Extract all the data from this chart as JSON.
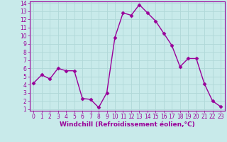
{
  "x": [
    0,
    1,
    2,
    3,
    4,
    5,
    6,
    7,
    8,
    9,
    10,
    11,
    12,
    13,
    14,
    15,
    16,
    17,
    18,
    19,
    20,
    21,
    22,
    23
  ],
  "y": [
    4.2,
    5.2,
    4.7,
    6.0,
    5.7,
    5.7,
    2.3,
    2.2,
    1.2,
    3.0,
    9.8,
    12.8,
    12.5,
    13.8,
    12.8,
    11.8,
    10.3,
    8.8,
    6.2,
    7.2,
    7.2,
    4.1,
    2.0,
    1.3
  ],
  "line_color": "#990099",
  "marker": "D",
  "marker_size": 2.5,
  "line_width": 1.0,
  "bg_color": "#c8eaea",
  "grid_color": "#b0d8d8",
  "xlabel": "Windchill (Refroidissement éolien,°C)",
  "xlabel_color": "#990099",
  "tick_color": "#990099",
  "ylim": [
    1,
    14
  ],
  "xlim": [
    -0.5,
    23.5
  ],
  "yticks": [
    1,
    2,
    3,
    4,
    5,
    6,
    7,
    8,
    9,
    10,
    11,
    12,
    13,
    14
  ],
  "xticks": [
    0,
    1,
    2,
    3,
    4,
    5,
    6,
    7,
    8,
    9,
    10,
    11,
    12,
    13,
    14,
    15,
    16,
    17,
    18,
    19,
    20,
    21,
    22,
    23
  ],
  "spine_color": "#990099",
  "xlabel_fontsize": 6.5,
  "tick_fontsize": 5.5
}
